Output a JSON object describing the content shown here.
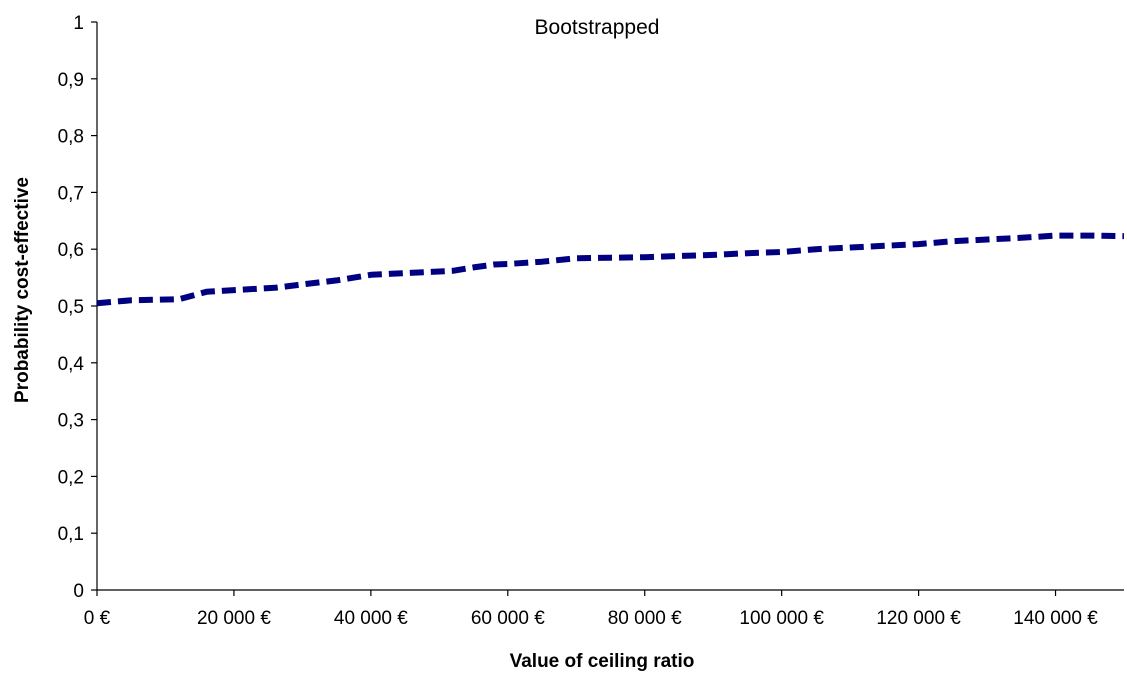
{
  "chart_data": {
    "type": "line",
    "title": "Bootstrapped",
    "xlabel": "Value of ceiling ratio",
    "ylabel": "Probability cost-effective",
    "xlim": [
      0,
      150000
    ],
    "ylim": [
      0,
      1
    ],
    "x_ticks": [
      0,
      20000,
      40000,
      60000,
      80000,
      100000,
      120000,
      140000
    ],
    "x_tick_labels": [
      "0 €",
      "20 000 €",
      "40 000 €",
      "60 000 €",
      "80 000 €",
      "100 000 €",
      "120 000 €",
      "140 000 €"
    ],
    "y_ticks": [
      0,
      0.1,
      0.2,
      0.3,
      0.4,
      0.5,
      0.6,
      0.7,
      0.8,
      0.9,
      1
    ],
    "y_tick_labels": [
      "0",
      "0,1",
      "0,2",
      "0,3",
      "0,4",
      "0,5",
      "0,6",
      "0,7",
      "0,8",
      "0,9",
      "1"
    ],
    "grid": false,
    "legend": "none",
    "series": [
      {
        "color": "#000080",
        "line_style": "dashed",
        "x": [
          0,
          5000,
          12000,
          16000,
          20000,
          26000,
          30000,
          35000,
          40000,
          45000,
          52000,
          55000,
          58000,
          60000,
          65000,
          70000,
          75000,
          80000,
          85000,
          90000,
          95000,
          100000,
          105000,
          110000,
          115000,
          120000,
          125000,
          130000,
          135000,
          140000,
          145000,
          150000
        ],
        "y": [
          0.505,
          0.51,
          0.512,
          0.525,
          0.528,
          0.532,
          0.538,
          0.545,
          0.555,
          0.558,
          0.562,
          0.568,
          0.573,
          0.574,
          0.578,
          0.584,
          0.585,
          0.586,
          0.588,
          0.59,
          0.593,
          0.595,
          0.6,
          0.603,
          0.606,
          0.609,
          0.614,
          0.617,
          0.62,
          0.624,
          0.624,
          0.623
        ]
      }
    ]
  }
}
